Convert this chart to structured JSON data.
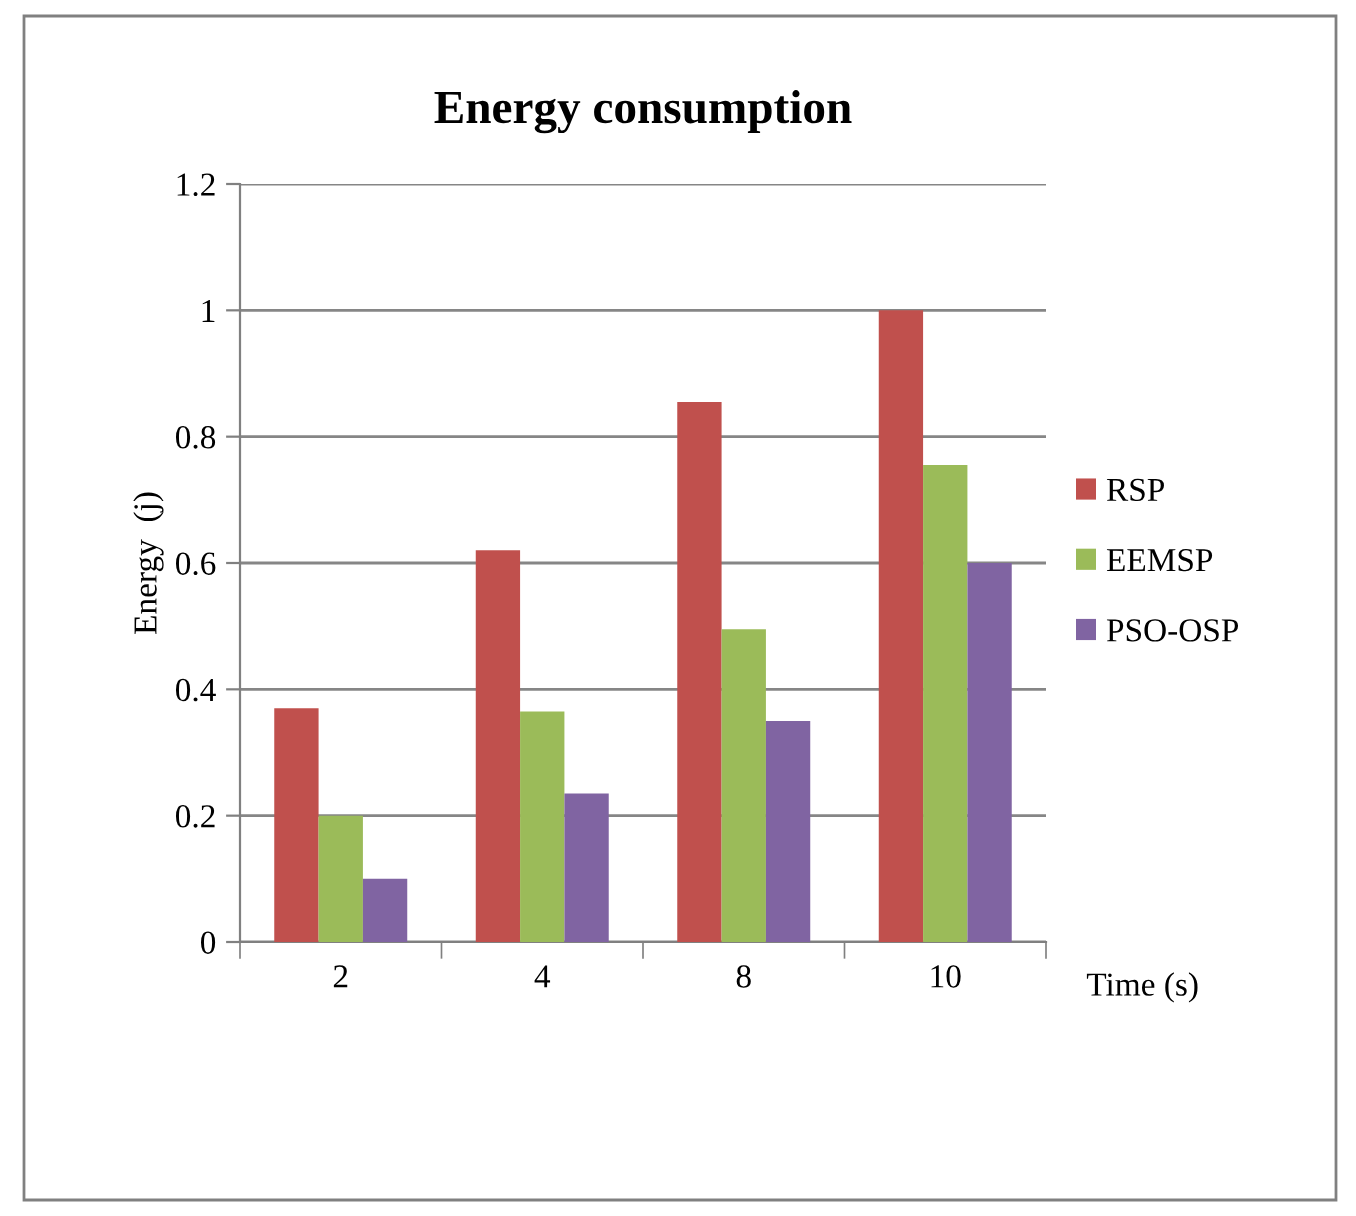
{
  "chart_data": {
    "type": "bar",
    "title": "Energy consumption",
    "xlabel": "Time (s)",
    "ylabel": "Energy  (j)",
    "categories": [
      "2",
      "4",
      "8",
      "10"
    ],
    "series": [
      {
        "name": "RSP",
        "color": "#c0504d",
        "values": [
          0.37,
          0.62,
          0.855,
          1.0
        ]
      },
      {
        "name": "EEMSP",
        "color": "#9bbb59",
        "values": [
          0.2,
          0.365,
          0.495,
          0.755
        ]
      },
      {
        "name": "PSO-OSP",
        "color": "#8064a2",
        "values": [
          0.1,
          0.235,
          0.35,
          0.6
        ]
      }
    ],
    "ylim": [
      0,
      1.2
    ],
    "yticks": [
      0,
      0.2,
      0.4,
      0.6,
      0.8,
      1,
      1.2
    ],
    "grid": "y",
    "legend": "right"
  }
}
